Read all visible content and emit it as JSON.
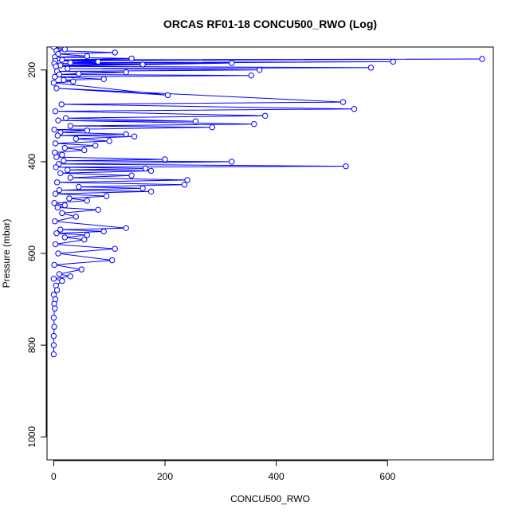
{
  "chart_data": {
    "type": "scatter",
    "title": "ORCAS RF01-18 CONCU500_RWO (Log)",
    "xlabel": "CONCU500_RWO",
    "ylabel": "Pressure (mbar)",
    "xlim": [
      -12,
      790
    ],
    "ylim": [
      1050,
      150
    ],
    "x_ticks": [
      0,
      200,
      400,
      600
    ],
    "y_ticks": [
      200,
      400,
      600,
      800,
      1000
    ],
    "connected": true,
    "marker": "open-circle",
    "grid": false,
    "legend": "none",
    "color": "#0000ff",
    "series": [
      {
        "x": [
          0,
          20,
          5,
          110,
          8,
          60,
          2,
          140,
          15,
          770,
          3,
          80,
          30,
          610,
          1,
          160,
          12,
          320,
          4,
          570,
          25,
          370,
          6,
          130,
          45,
          10,
          355,
          2,
          90,
          18,
          35,
          0,
          205,
          5,
          520,
          14,
          540,
          3,
          380,
          22,
          255,
          8,
          360,
          30,
          285,
          1,
          60,
          12,
          130,
          7,
          145,
          40,
          100,
          3,
          75,
          20,
          55,
          2,
          15,
          5,
          200,
          18,
          320,
          9,
          525,
          4,
          165,
          25,
          175,
          12,
          140,
          30,
          240,
          6,
          235,
          45,
          160,
          10,
          175,
          3,
          95,
          28,
          60,
          1,
          20,
          7,
          80,
          15,
          40,
          2,
          130,
          12,
          90,
          5,
          60,
          20,
          55,
          3,
          110,
          8,
          105,
          1,
          50,
          10,
          30,
          0,
          15,
          4,
          6,
          0,
          3,
          1,
          2,
          0,
          1,
          0,
          0,
          0
        ],
        "y": [
          150,
          155,
          158,
          162,
          165,
          170,
          172,
          175,
          178,
          176,
          180,
          182,
          184,
          182,
          186,
          188,
          190,
          185,
          192,
          195,
          197,
          200,
          203,
          205,
          208,
          210,
          212,
          215,
          220,
          222,
          225,
          228,
          255,
          240,
          270,
          275,
          285,
          290,
          300,
          305,
          312,
          310,
          318,
          322,
          325,
          330,
          332,
          336,
          340,
          343,
          345,
          350,
          355,
          360,
          365,
          370,
          375,
          380,
          385,
          390,
          395,
          398,
          400,
          405,
          410,
          412,
          415,
          418,
          420,
          425,
          430,
          435,
          440,
          445,
          450,
          455,
          458,
          462,
          465,
          470,
          475,
          480,
          485,
          490,
          495,
          500,
          505,
          512,
          520,
          530,
          545,
          548,
          552,
          556,
          560,
          565,
          570,
          580,
          590,
          600,
          615,
          625,
          635,
          645,
          650,
          655,
          660,
          670,
          680,
          690,
          700,
          710,
          720,
          740,
          760,
          780,
          800,
          820
        ]
      }
    ]
  }
}
